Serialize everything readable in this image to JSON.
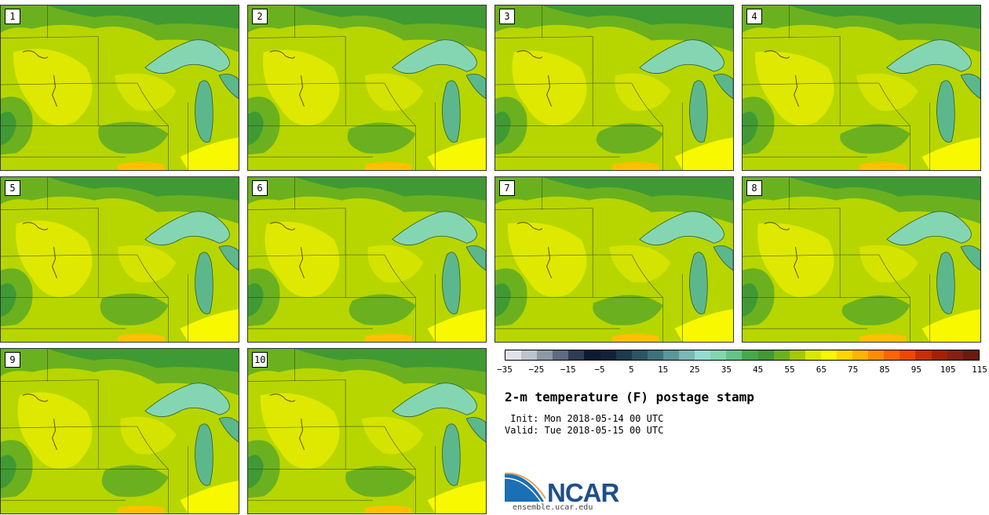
{
  "panels": [
    "1",
    "2",
    "3",
    "4",
    "5",
    "6",
    "7",
    "8",
    "9",
    "10"
  ],
  "colorbar": {
    "colors": [
      "#dfe3e9",
      "#bcc3cc",
      "#8f98a6",
      "#5d6a80",
      "#2d3d58",
      "#0d1a33",
      "#122238",
      "#1e3a4d",
      "#2b5566",
      "#3e717c",
      "#5a969a",
      "#79b8b6",
      "#92dcd0",
      "#80d6ad",
      "#62c48b",
      "#47a849",
      "#3f9a33",
      "#6bb11f",
      "#a3c900",
      "#d8e700",
      "#f8f800",
      "#ffd500",
      "#ffb300",
      "#ff8c00",
      "#ff6400",
      "#f04600",
      "#c82e00",
      "#a52000",
      "#862010",
      "#6a1a0f"
    ],
    "tick_labels": [
      "−35",
      "−25",
      "−15",
      "−5",
      "5",
      "15",
      "25",
      "35",
      "45",
      "55",
      "65",
      "75",
      "85",
      "95",
      "105",
      "115"
    ]
  },
  "title": "2-m temperature (F) postage stamp",
  "init_text": " Init: Mon 2018-05-14 00 UTC",
  "valid_text": "Valid: Tue 2018-05-15 00 UTC",
  "logo": {
    "name": "NCAR",
    "url": "ensemble.ucar.edu"
  },
  "map_colors": {
    "base": "#b7d600",
    "warm": "#dfe800",
    "hot": "#f8f800",
    "hotter": "#ffc000",
    "cool": "#6bb11f",
    "cooler": "#3f9a33",
    "lake": "#84d6b2",
    "lake_dark": "#5cb88c"
  }
}
